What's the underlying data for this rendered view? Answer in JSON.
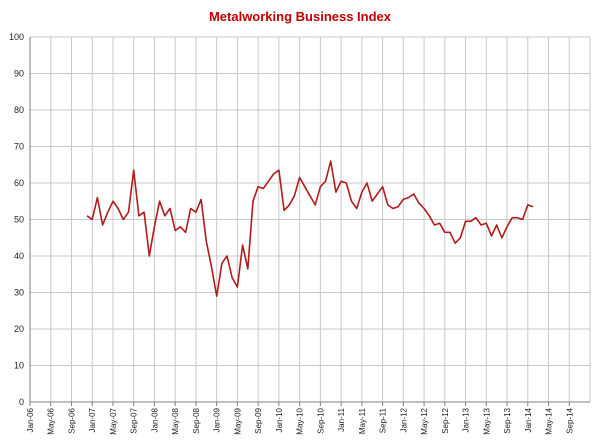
{
  "colors": {
    "line": "#b01c1c",
    "title": "#c00000",
    "grid": "#c8c8c8",
    "axis": "#7f7f7f"
  },
  "chart_data": {
    "type": "line",
    "title": "Metalworking Business Index",
    "xlabel": "",
    "ylabel": "",
    "ylim": [
      0,
      100
    ],
    "y_ticks": [
      0,
      10,
      20,
      30,
      40,
      50,
      60,
      70,
      80,
      90,
      100
    ],
    "x_tick_labels": [
      "Jan-06",
      "May-06",
      "Sep-06",
      "Jan-07",
      "May-07",
      "Sep-07",
      "Jan-08",
      "May-08",
      "Sep-08",
      "Jan-09",
      "May-09",
      "Sep-09",
      "Jan-10",
      "May-10",
      "Sep-10",
      "Jan-11",
      "May-11",
      "Sep-11",
      "Jan-12",
      "May-12",
      "Sep-12",
      "Jan-13",
      "May-13",
      "Sep-13",
      "Jan-14",
      "May-14",
      "Sep-14"
    ],
    "x_range": [
      "Jan-06",
      "Dec-14"
    ],
    "grid": "vertical and horizontal",
    "legend": "none",
    "series": [
      {
        "x": [
          "Dec-06",
          "Jan-07",
          "Feb-07",
          "Mar-07",
          "Apr-07",
          "May-07",
          "Jun-07",
          "Jul-07",
          "Aug-07",
          "Sep-07",
          "Oct-07",
          "Nov-07",
          "Dec-07",
          "Jan-08",
          "Feb-08",
          "Mar-08",
          "Apr-08",
          "May-08",
          "Jun-08",
          "Jul-08",
          "Aug-08",
          "Sep-08",
          "Oct-08",
          "Nov-08",
          "Dec-08",
          "Jan-09",
          "Feb-09",
          "Mar-09",
          "Apr-09",
          "May-09",
          "Jun-09",
          "Jul-09",
          "Aug-09",
          "Sep-09",
          "Oct-09",
          "Nov-09",
          "Dec-09",
          "Jan-10",
          "Feb-10",
          "Mar-10",
          "Apr-10",
          "May-10",
          "Jun-10",
          "Jul-10",
          "Aug-10",
          "Sep-10",
          "Oct-10",
          "Nov-10",
          "Dec-10",
          "Jan-11",
          "Feb-11",
          "Mar-11",
          "Apr-11",
          "May-11",
          "Jun-11",
          "Jul-11",
          "Aug-11",
          "Sep-11",
          "Oct-11",
          "Nov-11",
          "Dec-11",
          "Jan-12",
          "Feb-12",
          "Mar-12",
          "Apr-12",
          "May-12",
          "Jun-12",
          "Jul-12",
          "Aug-12",
          "Sep-12",
          "Oct-12",
          "Nov-12",
          "Dec-12",
          "Jan-13",
          "Feb-13",
          "Mar-13",
          "Apr-13",
          "May-13",
          "Jun-13",
          "Jul-13",
          "Aug-13",
          "Sep-13",
          "Oct-13",
          "Nov-13",
          "Dec-13",
          "Jan-14",
          "Feb-14"
        ],
        "values": [
          51,
          50,
          56,
          48.5,
          52,
          55,
          53,
          50,
          52,
          63.5,
          51,
          52,
          40,
          48,
          55,
          51,
          53,
          47,
          48,
          46.5,
          53,
          52,
          55.5,
          44,
          37,
          29,
          38,
          40,
          34,
          31.5,
          43,
          36.5,
          55,
          59,
          58.5,
          60.5,
          62.5,
          63.5,
          52.5,
          54,
          56.5,
          61.5,
          59,
          56.5,
          54,
          59,
          60.5,
          66,
          57.5,
          60.5,
          60,
          55,
          53,
          57.5,
          60,
          55,
          57,
          59,
          54,
          53,
          53.5,
          55.5,
          56,
          57,
          54.5,
          53,
          51,
          48.5,
          49,
          46.5,
          46.5,
          43.5,
          45,
          49.5,
          49.5,
          50.5,
          48.5,
          49,
          45.5,
          48.5,
          45,
          48,
          50.5,
          50.5,
          50,
          54,
          53.5
        ]
      }
    ]
  }
}
